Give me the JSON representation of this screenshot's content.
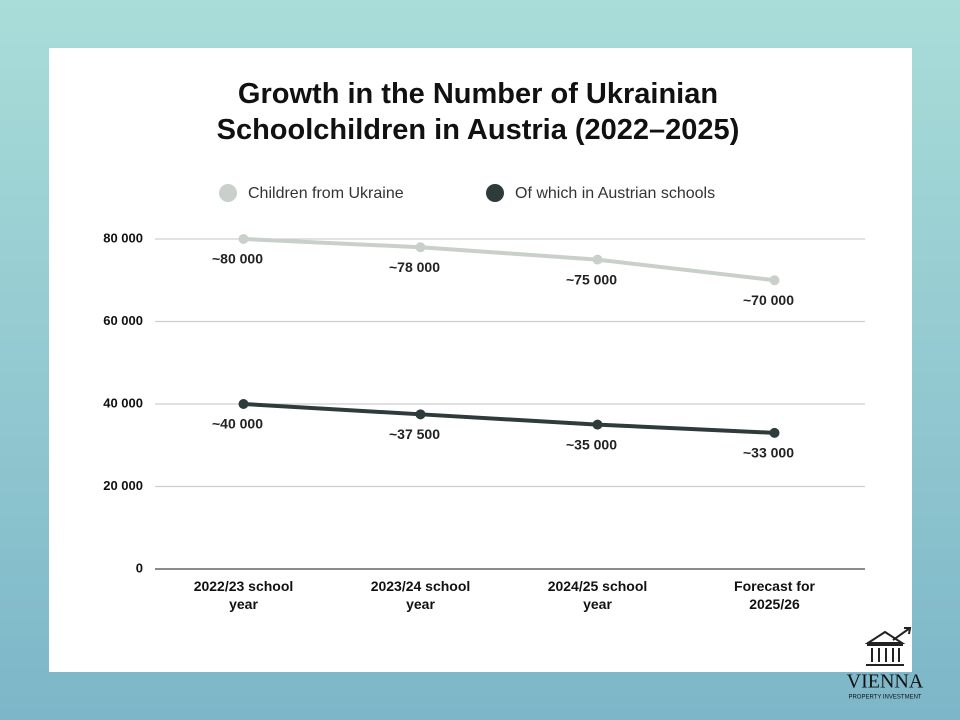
{
  "chart_data": {
    "type": "line",
    "title": "Growth in the Number of Ukrainian Schoolchildren in Austria (2022–2025)",
    "categories": [
      "2022/23 school year",
      "2023/24 school year",
      "2024/25 school year",
      "Forecast for 2025/26"
    ],
    "series": [
      {
        "name": "Children from Ukraine",
        "color": "#c9d0c9",
        "values": [
          80000,
          78000,
          75000,
          70000
        ],
        "value_labels": [
          "~80 000",
          "~78 000",
          "~75 000",
          "~70 000"
        ]
      },
      {
        "name": "Of which in Austrian schools",
        "color": "#2d3b3b",
        "values": [
          40000,
          37500,
          35000,
          33000
        ],
        "value_labels": [
          "~40 000",
          "~37 500",
          "~35 000",
          "~33 000"
        ]
      }
    ],
    "ylim": [
      0,
      80000
    ],
    "yticks": [
      0,
      {
        "value": 20000,
        "label": "20 000"
      },
      {
        "value": 40000,
        "label": "40 000"
      },
      {
        "value": 60000,
        "label": "60 000"
      },
      {
        "value": 80000,
        "label": "80 000"
      }
    ],
    "grid": true,
    "legend": "top"
  },
  "logo": {
    "name": "VIENNA",
    "tagline": "PROPERTY INVESTMENT"
  }
}
